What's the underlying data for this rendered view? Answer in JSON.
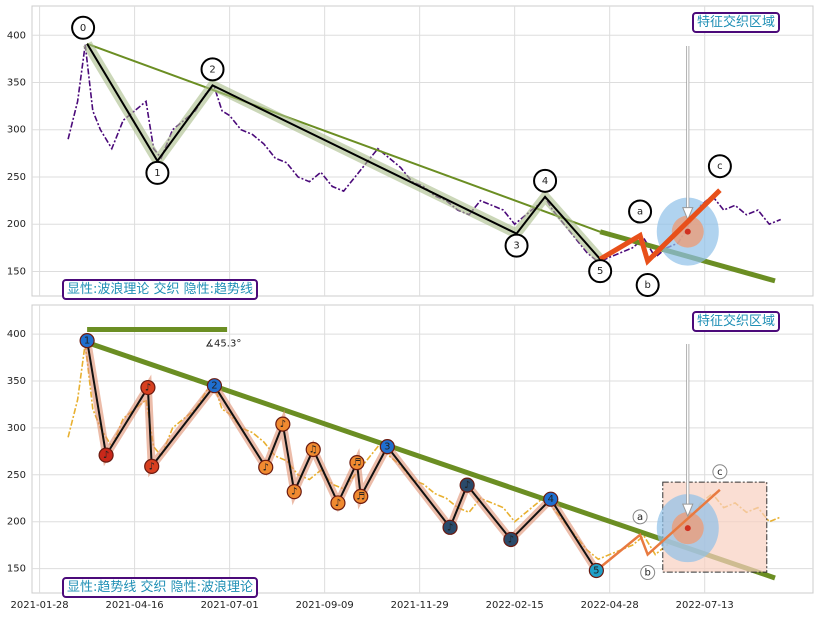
{
  "chart_data": [
    {
      "type": "line",
      "annotation_left": "显性:波浪理论 交织 隐性:趋势线",
      "annotation_right": "特征交织区域",
      "xlim": [
        -4,
        407
      ],
      "ylim": [
        124,
        431
      ],
      "yticks": [
        150,
        200,
        250,
        300,
        350,
        400
      ],
      "grid": true,
      "series": [
        {
          "color": "#4b0a7a",
          "x": [
            15,
            20,
            24,
            28,
            32,
            38,
            44,
            50,
            56,
            60,
            64,
            70,
            76,
            82,
            88,
            92,
            96,
            100,
            106,
            112,
            118,
            124,
            130,
            136,
            142,
            148,
            154,
            160,
            166,
            172,
            178,
            184,
            190,
            196,
            202,
            208,
            214,
            220,
            226,
            232,
            238,
            244,
            250,
            256,
            262,
            266,
            270,
            276,
            282,
            288,
            294,
            300,
            306,
            312,
            318,
            324,
            330,
            336,
            342,
            348,
            354,
            360,
            366,
            372,
            378,
            384,
            390
          ],
          "values": [
            290,
            330,
            390,
            320,
            300,
            280,
            310,
            320,
            330,
            280,
            270,
            300,
            310,
            320,
            340,
            345,
            320,
            315,
            300,
            295,
            285,
            270,
            265,
            250,
            245,
            255,
            240,
            235,
            250,
            265,
            280,
            270,
            260,
            245,
            240,
            230,
            225,
            215,
            210,
            225,
            220,
            215,
            200,
            210,
            220,
            228,
            215,
            200,
            185,
            170,
            160,
            165,
            170,
            175,
            185,
            165,
            175,
            180,
            200,
            220,
            230,
            215,
            220,
            210,
            215,
            200,
            205
          ]
        }
      ],
      "waves": {
        "labels": [
          "0",
          "1",
          "2",
          "3",
          "4",
          "5"
        ],
        "x": [
          25,
          62,
          91,
          251,
          266,
          295
        ],
        "values": [
          391,
          267,
          347,
          190,
          229,
          163
        ],
        "color": "#000000"
      },
      "corrective": {
        "labels": [
          "a",
          "b",
          "c"
        ],
        "x": [
          295,
          316,
          320,
          358
        ],
        "values": [
          163,
          188,
          161,
          236
        ],
        "color": "#e8501a"
      },
      "trendline": {
        "x": [
          25,
          295,
          387
        ],
        "values": [
          391,
          192,
          140
        ],
        "color": "#6b8e23"
      }
    },
    {
      "type": "line",
      "annotation_left": "显性:趋势线 交织 隐性:波浪理论",
      "annotation_right": "特征交织区域",
      "angle_label": "∡45.3°",
      "xlim": [
        -4,
        407
      ],
      "ylim": [
        124,
        431
      ],
      "yticks": [
        150,
        200,
        250,
        300,
        350,
        400
      ],
      "grid": true,
      "xticks": [
        {
          "value": 0,
          "label": "2021-01-28"
        },
        {
          "value": 50,
          "label": "2021-04-16"
        },
        {
          "value": 100,
          "label": "2021-07-01"
        },
        {
          "value": 150,
          "label": "2021-09-09"
        },
        {
          "value": 200,
          "label": "2021-11-29"
        },
        {
          "value": 250,
          "label": "2022-02-15"
        },
        {
          "value": 300,
          "label": "2022-04-28"
        },
        {
          "value": 350,
          "label": "2022-07-13"
        }
      ],
      "series": [
        {
          "color": "#e8b030",
          "x": [
            15,
            20,
            24,
            28,
            32,
            38,
            44,
            50,
            56,
            60,
            64,
            70,
            76,
            82,
            88,
            92,
            96,
            100,
            106,
            112,
            118,
            124,
            130,
            136,
            142,
            148,
            154,
            160,
            166,
            172,
            178,
            184,
            190,
            196,
            202,
            208,
            214,
            220,
            226,
            232,
            238,
            244,
            250,
            256,
            262,
            266,
            270,
            276,
            282,
            288,
            294,
            300,
            306,
            312,
            318,
            324,
            330,
            336,
            342,
            348,
            354,
            360,
            366,
            372,
            378,
            384,
            390
          ],
          "values": [
            290,
            330,
            390,
            320,
            300,
            280,
            310,
            320,
            330,
            280,
            270,
            300,
            310,
            320,
            340,
            345,
            320,
            315,
            300,
            295,
            285,
            270,
            265,
            250,
            245,
            255,
            240,
            235,
            250,
            265,
            280,
            270,
            260,
            245,
            240,
            230,
            225,
            215,
            210,
            225,
            220,
            215,
            200,
            210,
            220,
            228,
            215,
            200,
            185,
            170,
            160,
            165,
            170,
            175,
            185,
            165,
            175,
            180,
            200,
            220,
            230,
            215,
            220,
            210,
            215,
            200,
            205
          ]
        }
      ],
      "waves": {
        "labels": [
          "1",
          "♪",
          "♪",
          "♪",
          "2",
          "♪",
          "♪",
          "♪",
          "♫",
          "♪",
          "♬",
          "♬",
          "3",
          "♪",
          "♪",
          "♪",
          "4",
          "5"
        ],
        "x": [
          25,
          35,
          57,
          59,
          92,
          119,
          128,
          134,
          144,
          157,
          167,
          169,
          183,
          216,
          225,
          248,
          269,
          293
        ],
        "values": [
          393,
          271,
          343,
          259,
          345,
          258,
          304,
          232,
          277,
          220,
          263,
          227,
          280,
          194,
          239,
          181,
          224,
          148
        ],
        "colors": [
          "#1f6fd0",
          "#c8281a",
          "#d84020",
          "#d84020",
          "#1f6fd0",
          "#f08a30",
          "#f08a30",
          "#f08a30",
          "#f08a30",
          "#f08a30",
          "#f08a30",
          "#f08a30",
          "#1f6fd0",
          "#2a4a6a",
          "#2a4a6a",
          "#2a4a6a",
          "#1f6fd0",
          "#20a0c8"
        ]
      },
      "corrective": {
        "labels": [
          "a",
          "b",
          "c"
        ],
        "x": [
          293,
          316,
          320,
          358
        ],
        "values": [
          148,
          186,
          165,
          234
        ],
        "color": "#e87a40"
      },
      "trendline": {
        "x": [
          25,
          387
        ],
        "values": [
          391,
          140
        ],
        "color": "#6b8e23"
      }
    }
  ]
}
